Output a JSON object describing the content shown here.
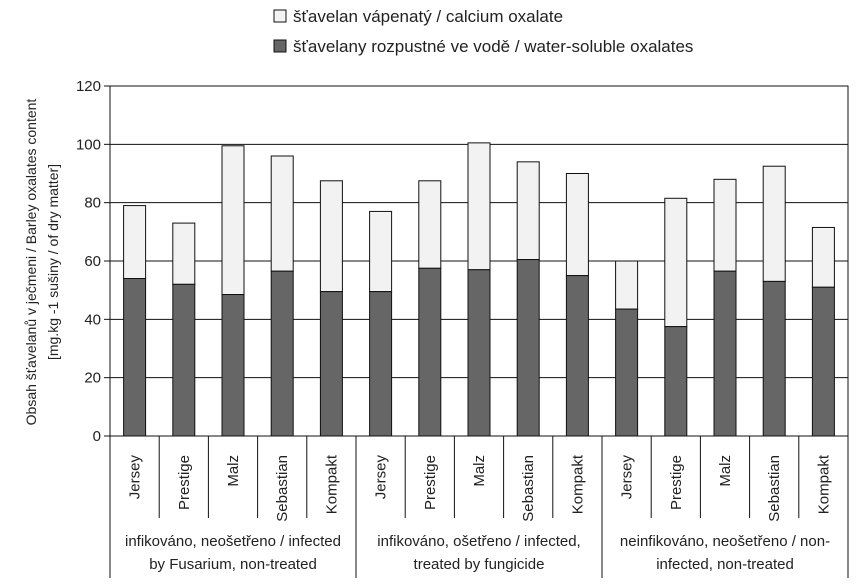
{
  "chart_data": {
    "type": "bar",
    "stacked": true,
    "ylabel": [
      "Obsah šťavelanů v ječmeni / Barley oxalates content",
      "[mg.kg -1 sušiny / of dry matter]"
    ],
    "ylim": [
      0,
      120
    ],
    "yticks": [
      0,
      20,
      40,
      60,
      80,
      100,
      120
    ],
    "grid": true,
    "legend_position": "top",
    "groups": [
      {
        "label": [
          "infikováno, neošetřeno / infected",
          "by Fusarium, non-treated"
        ],
        "categories": [
          "Jersey",
          "Prestige",
          "Malz",
          "Sebastian",
          "Kompakt"
        ]
      },
      {
        "label": [
          "infikováno, ošetřeno / infected,",
          "treated by fungicide"
        ],
        "categories": [
          "Jersey",
          "Prestige",
          "Malz",
          "Sebastian",
          "Kompakt"
        ]
      },
      {
        "label": [
          "neinfikováno, neošetřeno / non-",
          "infected, non-treated"
        ],
        "categories": [
          "Jersey",
          "Prestige",
          "Malz",
          "Sebastian",
          "Kompakt"
        ]
      }
    ],
    "series": [
      {
        "name": "šťavelany rozpustné ve vodě / water-soluble oxalates",
        "color": "#666666",
        "values": [
          54,
          52,
          48.5,
          56.5,
          49.5,
          49.5,
          57.5,
          57,
          60.5,
          55,
          43.5,
          37.5,
          56.5,
          53,
          51
        ]
      },
      {
        "name": "šťavelan vápenatý / calcium oxalate",
        "color": "#f2f2f2",
        "values": [
          25,
          21,
          51,
          39.5,
          38,
          27.5,
          30,
          43.5,
          33.5,
          35,
          16.5,
          44,
          31.5,
          39.5,
          20.5
        ]
      }
    ],
    "totals": [
      79,
      73,
      99.5,
      96,
      87.5,
      77,
      87.5,
      100.5,
      94,
      90,
      60,
      81.5,
      88,
      92.5,
      71.5
    ]
  }
}
